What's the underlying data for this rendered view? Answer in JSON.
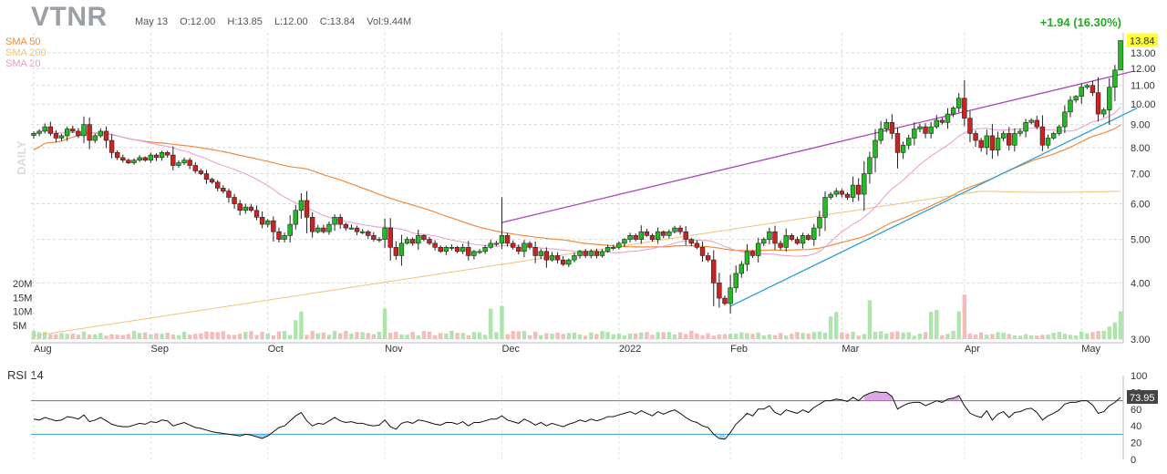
{
  "header": {
    "ticker": "VTNR",
    "date": "May 13",
    "open": "O:12.00",
    "high": "H:13.85",
    "low": "L:12.00",
    "close": "C:13.84",
    "volume": "Vol:9.44M",
    "change": "+1.94 (16.30%)",
    "timeframe": "DAILY"
  },
  "legend": {
    "sma50": "SMA 50",
    "sma200": "SMA 200",
    "sma20": "SMA 20"
  },
  "colors": {
    "up": "#22bb22",
    "down": "#cc2222",
    "sma50": "#f08a3c",
    "sma200": "#f0c27a",
    "sma20": "#e89ad0",
    "trend_upper": "#b040c0",
    "trend_lower": "#2a9fd6",
    "last_price_bg": "#ffff33",
    "rsi_upper": "#a050c0",
    "rsi_lower": "#3a9fd8"
  },
  "chart_data": [
    {
      "type": "candlestick",
      "panel": "price",
      "y_scale": "log",
      "ylim": [
        3.0,
        14.4
      ],
      "y_ticks": [
        "3.00",
        "4.00",
        "5.00",
        "6.00",
        "7.00",
        "8.00",
        "9.00",
        "10.00",
        "11.00",
        "12.00",
        "13.00"
      ],
      "x_ticks": [
        "Aug",
        "Sep",
        "Oct",
        "Nov",
        "Dec",
        "2022",
        "Feb",
        "Mar",
        "Apr",
        "May"
      ],
      "x_tick_index": [
        0,
        21,
        42,
        63,
        84,
        105,
        125,
        145,
        167,
        188
      ],
      "last_price_label": "13.84",
      "closes": [
        8.6,
        8.7,
        8.9,
        8.6,
        8.4,
        8.5,
        8.8,
        8.7,
        8.5,
        9.0,
        8.3,
        8.5,
        8.7,
        8.3,
        7.8,
        7.6,
        7.5,
        7.4,
        7.5,
        7.6,
        7.5,
        7.7,
        7.6,
        7.8,
        7.7,
        7.3,
        7.4,
        7.5,
        7.3,
        7.1,
        7.0,
        6.8,
        6.7,
        6.5,
        6.4,
        6.2,
        6.0,
        5.8,
        5.9,
        5.8,
        5.6,
        5.4,
        5.5,
        5.2,
        5.0,
        5.1,
        5.4,
        5.8,
        6.1,
        5.6,
        5.2,
        5.3,
        5.2,
        5.4,
        5.6,
        5.4,
        5.3,
        5.3,
        5.2,
        5.2,
        5.1,
        5.0,
        5.0,
        5.3,
        4.8,
        4.6,
        4.9,
        5.0,
        4.9,
        5.1,
        5.0,
        4.9,
        4.8,
        4.7,
        4.8,
        4.8,
        4.7,
        4.8,
        4.6,
        4.7,
        4.7,
        4.8,
        4.9,
        4.9,
        5.1,
        4.9,
        4.8,
        4.7,
        4.9,
        4.8,
        4.6,
        4.7,
        4.5,
        4.6,
        4.5,
        4.4,
        4.5,
        4.6,
        4.7,
        4.6,
        4.7,
        4.6,
        4.7,
        4.8,
        4.8,
        4.9,
        5.0,
        5.1,
        5.0,
        5.2,
        5.1,
        5.0,
        5.2,
        5.1,
        5.2,
        5.3,
        5.2,
        5.0,
        4.9,
        4.8,
        4.6,
        4.5,
        4.0,
        3.7,
        3.6,
        3.9,
        4.2,
        4.4,
        4.7,
        4.6,
        4.9,
        5.0,
        5.2,
        4.9,
        4.8,
        5.1,
        5.0,
        4.9,
        5.1,
        5.0,
        5.3,
        5.6,
        6.2,
        6.3,
        6.4,
        6.3,
        6.2,
        6.6,
        6.3,
        7.0,
        7.6,
        8.3,
        8.8,
        9.1,
        8.6,
        7.8,
        8.1,
        8.4,
        8.8,
        8.9,
        8.6,
        8.9,
        9.2,
        9.1,
        9.5,
        9.8,
        10.3,
        9.3,
        8.6,
        8.3,
        8.0,
        8.5,
        7.9,
        8.4,
        8.6,
        8.1,
        8.6,
        8.7,
        9.1,
        9.2,
        8.9,
        8.1,
        8.4,
        8.6,
        8.9,
        9.6,
        10.2,
        10.4,
        10.9,
        11.0,
        10.6,
        9.5,
        9.7,
        10.9,
        11.9,
        13.84
      ],
      "volume_panel": {
        "y_ticks": [
          "5M",
          "10M",
          "15M",
          "20M"
        ]
      }
    },
    {
      "type": "line",
      "panel": "rsi",
      "title": "RSI 14",
      "ylim": [
        0,
        100
      ],
      "y_ticks": [
        "0",
        "20",
        "40",
        "60",
        "80",
        "100"
      ],
      "upper_level": 70,
      "lower_level": 30,
      "last_value_label": "73.95",
      "values": [
        48,
        47,
        50,
        48,
        46,
        47,
        51,
        50,
        48,
        53,
        45,
        47,
        50,
        46,
        42,
        40,
        39,
        39,
        41,
        43,
        42,
        45,
        44,
        47,
        46,
        40,
        42,
        44,
        41,
        38,
        37,
        35,
        33,
        32,
        31,
        30,
        29,
        28,
        30,
        29,
        27,
        25,
        28,
        33,
        38,
        40,
        46,
        52,
        56,
        46,
        40,
        43,
        42,
        46,
        50,
        46,
        44,
        45,
        43,
        43,
        41,
        40,
        41,
        47,
        39,
        36,
        43,
        45,
        43,
        47,
        46,
        44,
        42,
        41,
        44,
        44,
        42,
        45,
        40,
        44,
        44,
        46,
        48,
        48,
        52,
        47,
        45,
        43,
        48,
        45,
        41,
        44,
        40,
        43,
        41,
        39,
        42,
        44,
        47,
        45,
        48,
        46,
        48,
        51,
        51,
        53,
        55,
        57,
        54,
        58,
        55,
        52,
        57,
        54,
        57,
        59,
        55,
        50,
        46,
        44,
        40,
        38,
        30,
        25,
        24,
        32,
        42,
        48,
        55,
        52,
        60,
        60,
        64,
        56,
        53,
        59,
        57,
        55,
        59,
        56,
        62,
        66,
        70,
        70,
        72,
        71,
        69,
        74,
        70,
        76,
        79,
        81,
        80,
        80,
        75,
        60,
        64,
        67,
        68,
        68,
        64,
        67,
        70,
        68,
        72,
        73,
        76,
        64,
        55,
        52,
        50,
        58,
        47,
        54,
        57,
        50,
        56,
        57,
        60,
        61,
        56,
        47,
        52,
        55,
        59,
        66,
        68,
        68,
        70,
        70,
        65,
        55,
        57,
        64,
        68,
        73.95
      ]
    }
  ]
}
